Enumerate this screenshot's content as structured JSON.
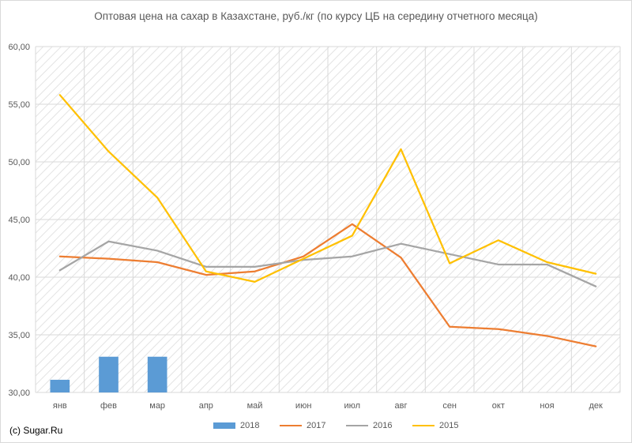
{
  "chart_data": {
    "type": "bar+line",
    "title": "Оптовая цена на сахар в Казахстане, руб./кг (по курсу ЦБ на середину отчетного месяца)",
    "categories": [
      "янв",
      "фев",
      "мар",
      "апр",
      "май",
      "июн",
      "июл",
      "авг",
      "сен",
      "окт",
      "ноя",
      "дек"
    ],
    "ylim": [
      30,
      60
    ],
    "yticks": [
      "30,00",
      "35,00",
      "40,00",
      "45,00",
      "50,00",
      "55,00",
      "60,00"
    ],
    "ytick_values": [
      30,
      35,
      40,
      45,
      50,
      55,
      60
    ],
    "grid": "diagonal-hatch",
    "legend_position": "bottom",
    "series": [
      {
        "name": "2018",
        "type": "bar",
        "color": "#5b9bd5",
        "values": [
          31.1,
          33.1,
          33.1,
          null,
          null,
          null,
          null,
          null,
          null,
          null,
          null,
          null
        ]
      },
      {
        "name": "2017",
        "type": "line",
        "color": "#ed7d31",
        "values": [
          41.8,
          41.6,
          41.3,
          40.2,
          40.5,
          41.8,
          44.6,
          41.7,
          35.7,
          35.5,
          34.9,
          34.0
        ]
      },
      {
        "name": "2016",
        "type": "line",
        "color": "#a5a5a5",
        "values": [
          40.6,
          43.1,
          42.3,
          40.9,
          40.9,
          41.5,
          41.8,
          42.9,
          42.0,
          41.1,
          41.1,
          39.2
        ]
      },
      {
        "name": "2015",
        "type": "line",
        "color": "#ffc000",
        "values": [
          55.8,
          50.9,
          46.9,
          40.5,
          39.6,
          41.6,
          43.6,
          51.1,
          41.2,
          43.2,
          41.3,
          40.3
        ]
      }
    ]
  },
  "footer": {
    "credit": "(c) Sugar.Ru"
  }
}
